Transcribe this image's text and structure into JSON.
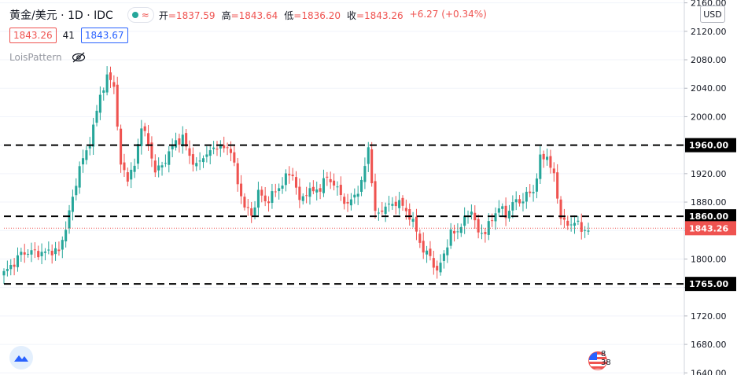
{
  "header": {
    "symbol": "黄金/美元 · 1D · IDC",
    "open_label": "开",
    "open": "=1837.59",
    "high_label": "高",
    "high": "=1843.64",
    "low_label": "低",
    "low": "=1836.20",
    "close_label": "收",
    "close": "=1843.26",
    "change": "+6.27 (+0.34%)",
    "bid": "1843.26",
    "spread": "41",
    "ask": "1843.67",
    "indicator": "LoisPattern",
    "currency": "USD",
    "flag_text": "8 38"
  },
  "colors": {
    "up": "#26a69a",
    "down": "#ef5350",
    "level_line": "#000000",
    "price_line": "#ef5350",
    "grid": "#f0f3fa"
  },
  "chart_data": {
    "type": "candlestick",
    "ylim": [
      1637,
      2164
    ],
    "yticks": [
      "2160.00",
      "2120.00",
      "2080.00",
      "2040.00",
      "2000.00",
      "1960.00",
      "1920.00",
      "1880.00",
      "1840.00",
      "1800.00",
      "1760.00",
      "1720.00",
      "1680.00",
      "1640.00"
    ],
    "levels": [
      {
        "value": 1960,
        "label": "1960.00"
      },
      {
        "value": 1860,
        "label": "1860.00"
      },
      {
        "value": 1765,
        "label": "1765.00"
      }
    ],
    "last_price": {
      "value": 1843.26,
      "label": "1843.26"
    },
    "anchors": [
      [
        0,
        1780
      ],
      [
        3,
        1795
      ],
      [
        5,
        1808
      ],
      [
        8,
        1810
      ],
      [
        11,
        1808
      ],
      [
        14,
        1812
      ],
      [
        16,
        1810
      ],
      [
        18,
        1845
      ],
      [
        20,
        1885
      ],
      [
        22,
        1930
      ],
      [
        24,
        1950
      ],
      [
        26,
        1985
      ],
      [
        28,
        2030
      ],
      [
        30,
        2055
      ],
      [
        32,
        2045
      ],
      [
        34,
        1930
      ],
      [
        36,
        1915
      ],
      [
        38,
        1930
      ],
      [
        40,
        1990
      ],
      [
        42,
        1960
      ],
      [
        44,
        1925
      ],
      [
        46,
        1930
      ],
      [
        48,
        1950
      ],
      [
        50,
        1965
      ],
      [
        52,
        1970
      ],
      [
        54,
        1945
      ],
      [
        56,
        1930
      ],
      [
        58,
        1945
      ],
      [
        60,
        1950
      ],
      [
        62,
        1960
      ],
      [
        64,
        1955
      ],
      [
        66,
        1955
      ],
      [
        68,
        1905
      ],
      [
        70,
        1875
      ],
      [
        72,
        1860
      ],
      [
        74,
        1895
      ],
      [
        76,
        1880
      ],
      [
        78,
        1890
      ],
      [
        80,
        1900
      ],
      [
        82,
        1915
      ],
      [
        84,
        1920
      ],
      [
        86,
        1880
      ],
      [
        88,
        1895
      ],
      [
        90,
        1895
      ],
      [
        92,
        1900
      ],
      [
        94,
        1915
      ],
      [
        96,
        1905
      ],
      [
        98,
        1890
      ],
      [
        100,
        1875
      ],
      [
        102,
        1890
      ],
      [
        104,
        1905
      ],
      [
        106,
        1958
      ],
      [
        108,
        1862
      ],
      [
        110,
        1870
      ],
      [
        112,
        1875
      ],
      [
        114,
        1880
      ],
      [
        116,
        1875
      ],
      [
        118,
        1860
      ],
      [
        120,
        1840
      ],
      [
        122,
        1810
      ],
      [
        124,
        1805
      ],
      [
        126,
        1780
      ],
      [
        128,
        1808
      ],
      [
        130,
        1835
      ],
      [
        132,
        1840
      ],
      [
        134,
        1855
      ],
      [
        136,
        1870
      ],
      [
        138,
        1835
      ],
      [
        140,
        1840
      ],
      [
        142,
        1855
      ],
      [
        144,
        1875
      ],
      [
        146,
        1860
      ],
      [
        148,
        1880
      ],
      [
        150,
        1880
      ],
      [
        152,
        1890
      ],
      [
        154,
        1895
      ],
      [
        156,
        1940
      ],
      [
        158,
        1945
      ],
      [
        160,
        1915
      ],
      [
        162,
        1860
      ],
      [
        164,
        1845
      ],
      [
        166,
        1855
      ],
      [
        168,
        1840
      ],
      [
        170,
        1843
      ]
    ]
  }
}
